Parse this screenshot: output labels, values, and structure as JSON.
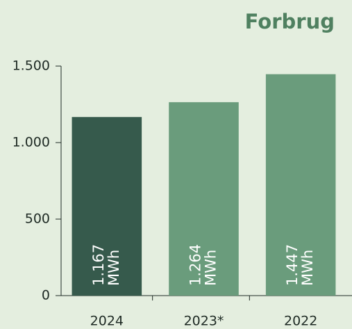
{
  "chart_data": {
    "type": "bar",
    "title": "Forbrug",
    "categories": [
      "2024",
      "2023*",
      "2022"
    ],
    "values": [
      1167,
      1264,
      1447
    ],
    "value_labels": [
      "1.167 MWh",
      "1.264 MWh",
      "1.447 MWh"
    ],
    "colors": [
      "#365a4c",
      "#6a9c7c",
      "#6a9c7c"
    ],
    "ylim": [
      0,
      1500
    ],
    "yticks": [
      0,
      500,
      {
        "value": 1000,
        "label": "1.000"
      },
      {
        "value": 1500,
        "label": "1.500"
      }
    ]
  }
}
